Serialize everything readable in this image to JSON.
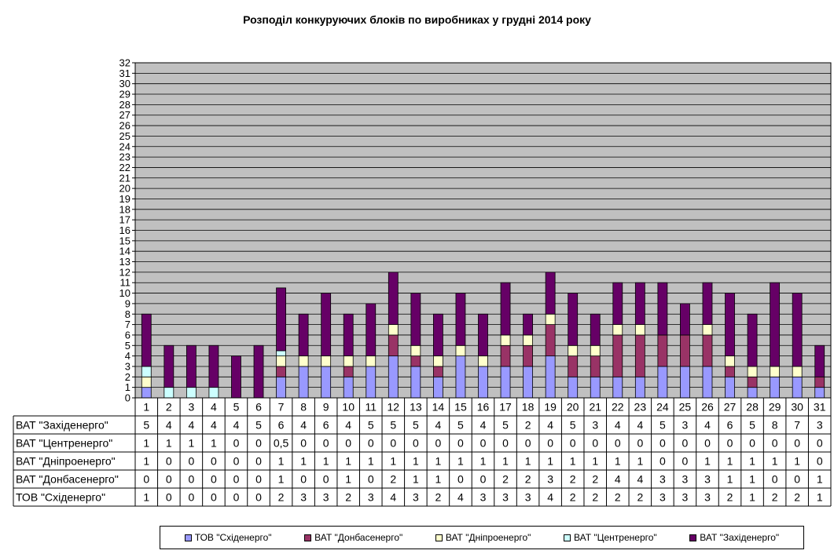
{
  "chart_data": {
    "type": "bar",
    "stacked": true,
    "title": "Розподіл конкуруючих блоків по виробниках у грудні 2014 року",
    "categories": [
      "1",
      "2",
      "3",
      "4",
      "5",
      "6",
      "7",
      "8",
      "9",
      "10",
      "11",
      "12",
      "13",
      "14",
      "15",
      "16",
      "17",
      "18",
      "19",
      "20",
      "21",
      "22",
      "23",
      "24",
      "25",
      "26",
      "27",
      "28",
      "29",
      "30",
      "31"
    ],
    "ylim": [
      0,
      32
    ],
    "yticks": [
      "0",
      "1",
      "2",
      "3",
      "4",
      "5",
      "6",
      "7",
      "8",
      "9",
      "10",
      "11",
      "12",
      "13",
      "14",
      "15",
      "16",
      "17",
      "18",
      "19",
      "20",
      "21",
      "22",
      "23",
      "24",
      "25",
      "26",
      "27",
      "28",
      "29",
      "30",
      "31",
      "32"
    ],
    "grid": true,
    "plot_background": "#c0c0c0",
    "legend_position": "bottom",
    "series": [
      {
        "name": "ТОВ \"Східенерго\"",
        "color": "#9999ff",
        "values": [
          1,
          0,
          0,
          0,
          0,
          0,
          2,
          3,
          3,
          2,
          3,
          4,
          3,
          2,
          4,
          3,
          3,
          3,
          4,
          2,
          2,
          2,
          2,
          3,
          3,
          3,
          2,
          1,
          2,
          2,
          1
        ],
        "labels": [
          "1",
          "0",
          "0",
          "0",
          "0",
          "0",
          "2",
          "3",
          "3",
          "2",
          "3",
          "4",
          "3",
          "2",
          "4",
          "3",
          "3",
          "3",
          "4",
          "2",
          "2",
          "2",
          "2",
          "3",
          "3",
          "3",
          "2",
          "1",
          "2",
          "2",
          "1"
        ]
      },
      {
        "name": "ВАТ \"Донбасенерго\"",
        "color": "#993366",
        "values": [
          0,
          0,
          0,
          0,
          0,
          0,
          1,
          0,
          0,
          1,
          0,
          2,
          1,
          1,
          0,
          0,
          2,
          2,
          3,
          2,
          2,
          4,
          4,
          3,
          3,
          3,
          1,
          1,
          0,
          0,
          1
        ],
        "labels": [
          "0",
          "0",
          "0",
          "0",
          "0",
          "0",
          "1",
          "0",
          "0",
          "1",
          "0",
          "2",
          "1",
          "1",
          "0",
          "0",
          "2",
          "2",
          "3",
          "2",
          "2",
          "4",
          "4",
          "3",
          "3",
          "3",
          "1",
          "1",
          "0",
          "0",
          "1"
        ]
      },
      {
        "name": "ВАТ \"Дніпроенерго\"",
        "color": "#ffffcc",
        "values": [
          1,
          0,
          0,
          0,
          0,
          0,
          1,
          1,
          1,
          1,
          1,
          1,
          1,
          1,
          1,
          1,
          1,
          1,
          1,
          1,
          1,
          1,
          1,
          0,
          0,
          1,
          1,
          1,
          1,
          1,
          0
        ],
        "labels": [
          "1",
          "0",
          "0",
          "0",
          "0",
          "0",
          "1",
          "1",
          "1",
          "1",
          "1",
          "1",
          "1",
          "1",
          "1",
          "1",
          "1",
          "1",
          "1",
          "1",
          "1",
          "1",
          "1",
          "0",
          "0",
          "1",
          "1",
          "1",
          "1",
          "1",
          "0"
        ]
      },
      {
        "name": "ВАТ \"Центренерго\"",
        "color": "#ccffff",
        "values": [
          1,
          1,
          1,
          1,
          0,
          0,
          0.5,
          0,
          0,
          0,
          0,
          0,
          0,
          0,
          0,
          0,
          0,
          0,
          0,
          0,
          0,
          0,
          0,
          0,
          0,
          0,
          0,
          0,
          0,
          0,
          0
        ],
        "labels": [
          "1",
          "1",
          "1",
          "1",
          "0",
          "0",
          "0,5",
          "0",
          "0",
          "0",
          "0",
          "0",
          "0",
          "0",
          "0",
          "0",
          "0",
          "0",
          "0",
          "0",
          "0",
          "0",
          "0",
          "0",
          "0",
          "0",
          "0",
          "0",
          "0",
          "0",
          "0"
        ]
      },
      {
        "name": "ВАТ \"Західенерго\"",
        "color": "#660066",
        "values": [
          5,
          4,
          4,
          4,
          4,
          5,
          6,
          4,
          6,
          4,
          5,
          5,
          5,
          4,
          5,
          4,
          5,
          2,
          4,
          5,
          3,
          4,
          4,
          5,
          3,
          4,
          6,
          5,
          8,
          7,
          3
        ],
        "labels": [
          "5",
          "4",
          "4",
          "4",
          "4",
          "5",
          "6",
          "4",
          "6",
          "4",
          "5",
          "5",
          "5",
          "4",
          "5",
          "4",
          "5",
          "2",
          "4",
          "5",
          "3",
          "4",
          "4",
          "5",
          "3",
          "4",
          "6",
          "5",
          "8",
          "7",
          "3"
        ]
      }
    ],
    "table_row_order": [
      4,
      3,
      2,
      1,
      0
    ]
  }
}
